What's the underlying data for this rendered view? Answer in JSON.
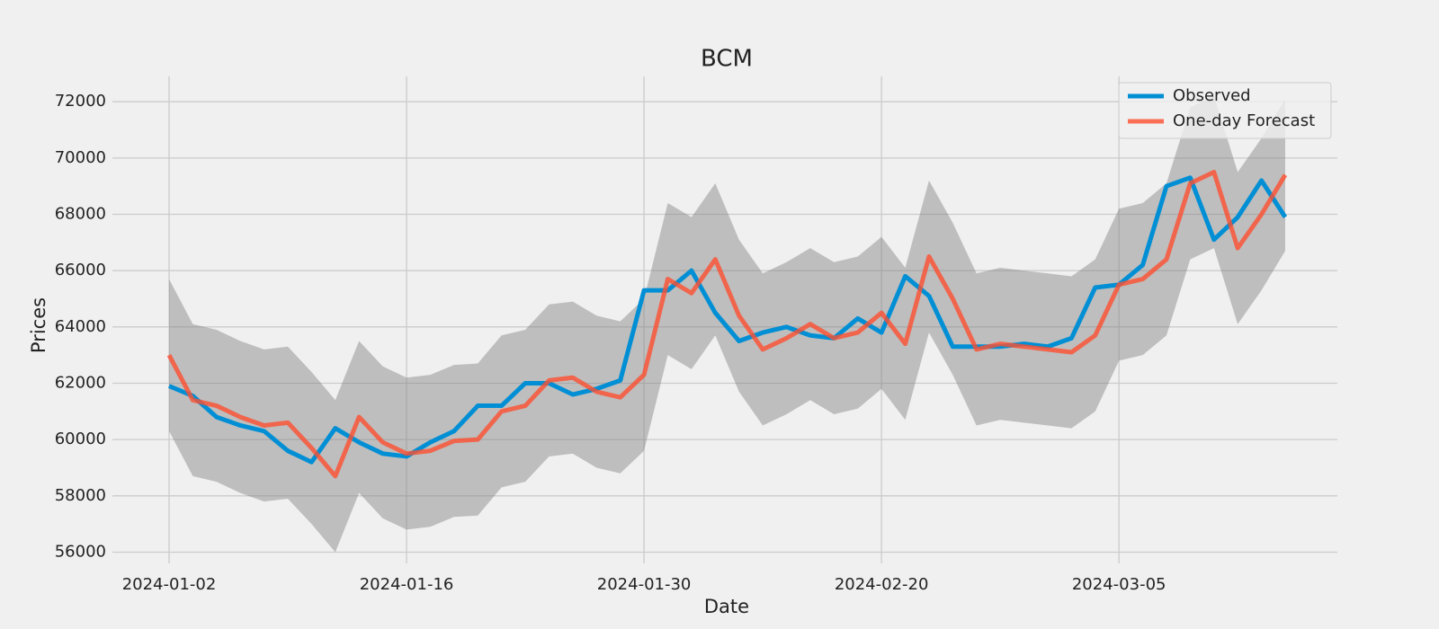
{
  "chart_data": {
    "type": "line",
    "title": "BCM",
    "xlabel": "Date",
    "ylabel": "Prices",
    "categories": [
      "2024-01-02",
      null,
      null,
      null,
      null,
      null,
      null,
      null,
      null,
      null,
      "2024-01-16",
      null,
      null,
      null,
      null,
      null,
      null,
      null,
      null,
      null,
      "2024-01-30",
      null,
      null,
      null,
      null,
      null,
      null,
      null,
      null,
      null,
      "2024-02-20",
      null,
      null,
      null,
      null,
      null,
      null,
      null,
      null,
      null,
      "2024-03-05",
      null,
      null,
      null,
      null,
      null,
      null,
      null
    ],
    "series": [
      {
        "name": "Observed",
        "color": "#008fd5",
        "values": [
          61900,
          61550,
          60800,
          60500,
          60300,
          59600,
          59200,
          60400,
          59900,
          59500,
          59400,
          59900,
          60300,
          61200,
          61200,
          62000,
          62000,
          61600,
          61800,
          62100,
          65300,
          65300,
          66000,
          64500,
          63500,
          63800,
          64000,
          63700,
          63600,
          64300,
          63800,
          65800,
          65100,
          63300,
          63300,
          63300,
          63400,
          63300,
          63600,
          65400,
          65500,
          66200,
          69000,
          69300,
          67100,
          67900,
          69200,
          67900
        ]
      },
      {
        "name": "One-day Forecast",
        "color": "#fc4f30",
        "values": [
          63000,
          61400,
          61200,
          60800,
          60500,
          60600,
          59700,
          58700,
          60800,
          59900,
          59500,
          59600,
          59950,
          60000,
          61000,
          61200,
          62100,
          62200,
          61700,
          61500,
          62300,
          65700,
          65200,
          66400,
          64400,
          63200,
          63600,
          64100,
          63600,
          63800,
          64500,
          63400,
          66500,
          65000,
          63200,
          63400,
          63300,
          63200,
          63100,
          63700,
          65500,
          65700,
          66400,
          69100,
          69500,
          66800,
          68000,
          69400
        ]
      }
    ],
    "band": {
      "color": "#808080",
      "upper": [
        65700,
        64100,
        63900,
        63500,
        63200,
        63300,
        62400,
        61400,
        63500,
        62600,
        62200,
        62300,
        62650,
        62700,
        63700,
        63900,
        64800,
        64900,
        64400,
        64200,
        65000,
        68400,
        67900,
        69100,
        67100,
        65900,
        66300,
        66800,
        66300,
        66500,
        67200,
        66100,
        69200,
        67700,
        65900,
        66100,
        66000,
        65900,
        65800,
        66400,
        68200,
        68400,
        69100,
        71800,
        72200,
        69500,
        70700,
        72100
      ],
      "lower": [
        60300,
        58700,
        58500,
        58100,
        57800,
        57900,
        57000,
        56000,
        58100,
        57200,
        56800,
        56900,
        57250,
        57300,
        58300,
        58500,
        59400,
        59500,
        59000,
        58800,
        59600,
        63000,
        62500,
        63700,
        61700,
        60500,
        60900,
        61400,
        60900,
        61100,
        61800,
        60700,
        63800,
        62300,
        60500,
        60700,
        60600,
        60500,
        60400,
        61000,
        62800,
        63000,
        63700,
        66400,
        66800,
        64100,
        65300,
        66700
      ]
    },
    "ylim": [
      55600,
      72900
    ],
    "yticks": [
      56000,
      58000,
      60000,
      62000,
      64000,
      66000,
      68000,
      70000,
      72000
    ],
    "grid": true,
    "legend": "upper right"
  }
}
